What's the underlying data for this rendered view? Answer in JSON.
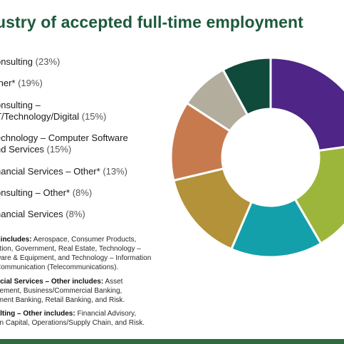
{
  "chart_data": {
    "type": "pie",
    "title": "ustry of accepted full-time employment",
    "categories": [
      "onsulting",
      "ther*",
      "onsulting – T/Technology/Digital",
      "echnology – Computer Software nd Services",
      "nancial Services – Other*",
      "onsulting – Other*",
      "nancial Services"
    ],
    "values": [
      23,
      19,
      15,
      15,
      13,
      8,
      8
    ],
    "legend": [
      {
        "text": "onsulting",
        "pct": "(23%)",
        "color": "#4f2587"
      },
      {
        "text": "ther*",
        "pct": "(19%)",
        "color": "#9cb63c"
      },
      {
        "text_l1": "onsulting –",
        "text_l2": "T/Technology/Digital",
        "pct": "(15%)",
        "color": "#13a0ab"
      },
      {
        "text_l1": "echnology – Computer Software",
        "text_l2": "nd Services",
        "pct": "(15%)",
        "color": "#b3923a"
      },
      {
        "text": "nancial Services – Other*",
        "pct": "(13%)",
        "color": "#c87a4f"
      },
      {
        "text": "onsulting – Other*",
        "pct": "(8%)",
        "color": "#b3ad9d"
      },
      {
        "text": "nancial Services",
        "pct": "(8%)",
        "color": "#0f4a3a"
      }
    ],
    "legend_placement": "left",
    "hole": "donut"
  },
  "notes": [
    {
      "label": "r includes:",
      "lines": [
        " Aerospace, Consumer Products,",
        "ation, Government, Real Estate, Technology –",
        "ware & Equipment, and Technology – Information",
        "Communication (Telecommunications)."
      ]
    },
    {
      "label": "ncial Services – Other includes:",
      "lines": [
        " Asset",
        "gement, Business/Commercial Banking,",
        "tment Banking, Retail Banking, and Risk."
      ]
    },
    {
      "label": "ulting – Other includes:",
      "lines": [
        " Financial Advisory,",
        "an Capital, Operations/Supply Chain, and Risk."
      ]
    }
  ],
  "colors": {
    "title": "#1d5a3c",
    "bottom_bar": "#2f6b3f"
  }
}
